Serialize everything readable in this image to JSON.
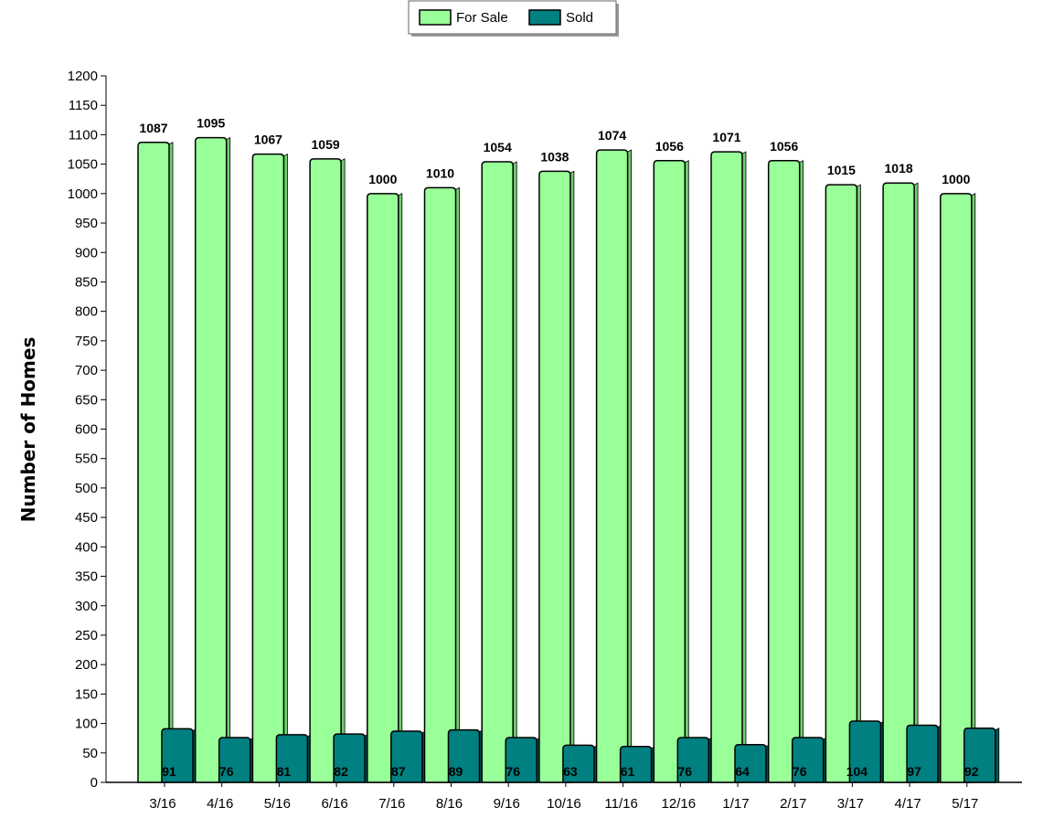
{
  "chart_data": {
    "type": "bar",
    "title": "",
    "xlabel": "",
    "ylabel": "Number of Homes",
    "ylim": [
      0,
      1200
    ],
    "ytick_step": 50,
    "grid": false,
    "legend_position": "top-center",
    "categories": [
      "3/16",
      "4/16",
      "5/16",
      "6/16",
      "7/16",
      "8/16",
      "9/16",
      "10/16",
      "11/16",
      "12/16",
      "1/17",
      "2/17",
      "3/17",
      "4/17",
      "5/17"
    ],
    "series": [
      {
        "name": "For Sale",
        "color": "#99ff99",
        "values": [
          1087,
          1095,
          1067,
          1059,
          1000,
          1010,
          1054,
          1038,
          1074,
          1056,
          1071,
          1056,
          1015,
          1018,
          1000
        ]
      },
      {
        "name": "Sold",
        "color": "#008080",
        "values": [
          91,
          76,
          81,
          82,
          87,
          89,
          76,
          63,
          61,
          76,
          64,
          76,
          104,
          97,
          92
        ]
      }
    ]
  }
}
